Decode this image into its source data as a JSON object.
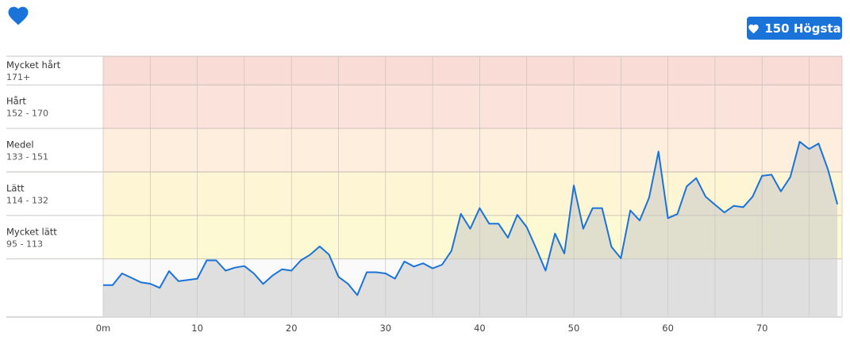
{
  "header": {
    "logo_icon": "heart-icon",
    "max_badge": {
      "icon": "heart-icon",
      "value": "150",
      "label": "Högsta",
      "text": "150 Högsta"
    }
  },
  "colors": {
    "accent": "#1a73d9",
    "line": "#1a73d9",
    "fill": "#c9c9c9",
    "zone_very_hard": "#f9dcd5",
    "zone_hard": "#fbe3dc",
    "zone_medium": "#fdeedd",
    "zone_easy": "#fef5d4",
    "zone_very_easy": "#fdf9d2",
    "zone_base": "#fafafa"
  },
  "chart_data": {
    "type": "area",
    "x_unit": "m",
    "xlim": [
      0,
      78.5
    ],
    "ylim": [
      70,
      183.5
    ],
    "x_ticks": [
      {
        "value": 0,
        "label": "0m"
      },
      {
        "value": 10,
        "label": "10"
      },
      {
        "value": 20,
        "label": "20"
      },
      {
        "value": 30,
        "label": "30"
      },
      {
        "value": 40,
        "label": "40"
      },
      {
        "value": 50,
        "label": "50"
      },
      {
        "value": 60,
        "label": "60"
      },
      {
        "value": 70,
        "label": "70"
      }
    ],
    "zones": [
      {
        "name": "Mycket hårt",
        "range": "171+",
        "min": 171,
        "max": 183.5,
        "color": "#f9dcd5"
      },
      {
        "name": "Hårt",
        "range": "152 - 170",
        "min": 152,
        "max": 171,
        "color": "#fbe3dc"
      },
      {
        "name": "Medel",
        "range": "133 - 151",
        "min": 133,
        "max": 152,
        "color": "#fdeedd"
      },
      {
        "name": "Lätt",
        "range": "114 - 132",
        "min": 114,
        "max": 133,
        "color": "#fef5d4"
      },
      {
        "name": "Mycket lätt",
        "range": "95 - 113",
        "min": 95,
        "max": 114,
        "color": "#fdf9d2"
      }
    ],
    "base_zone": {
      "min": 70,
      "max": 95,
      "color": "#fafafa"
    },
    "x": [
      0,
      1,
      2,
      3,
      4,
      5,
      6,
      7,
      8,
      9,
      10,
      11,
      12,
      13,
      14,
      15,
      16,
      17,
      18,
      19,
      20,
      21,
      22,
      23,
      24,
      25,
      26,
      27,
      28,
      29,
      30,
      31,
      32,
      33,
      34,
      35,
      36,
      37,
      38,
      39,
      40,
      41,
      42,
      43,
      44,
      45,
      46,
      47,
      48,
      49,
      50,
      51,
      52,
      53,
      54,
      55,
      56,
      57,
      58,
      59,
      60,
      61,
      62,
      63,
      64,
      65,
      66,
      67,
      68,
      69,
      70,
      71,
      72,
      73,
      74,
      75,
      76,
      77,
      78
    ],
    "y": [
      83.6,
      83.6,
      88.7,
      86.8,
      84.8,
      84.2,
      82.4,
      89.7,
      85.3,
      85.8,
      86.4,
      94.4,
      94.4,
      89.9,
      91.2,
      91.9,
      88.7,
      84.1,
      87.8,
      90.5,
      89.9,
      94.4,
      96.9,
      100.5,
      96.9,
      87.2,
      84.2,
      79.2,
      89.2,
      89.2,
      88.7,
      86.4,
      93.9,
      91.7,
      93.1,
      90.9,
      92.5,
      98.5,
      114.7,
      108.2,
      117.2,
      110.4,
      110.4,
      104.3,
      114.3,
      108.9,
      99.6,
      89.9,
      106.1,
      97.4,
      127.1,
      108.2,
      117.2,
      117.2,
      100.3,
      95.3,
      116.2,
      111.8,
      121.8,
      141.9,
      112.8,
      114.6,
      126.7,
      130.3,
      122.2,
      118.7,
      115.3,
      118.2,
      117.6,
      122.2,
      131.3,
      131.8,
      124.5,
      130.8,
      146.2,
      143.0,
      145.4,
      134.1,
      118.9
    ]
  }
}
